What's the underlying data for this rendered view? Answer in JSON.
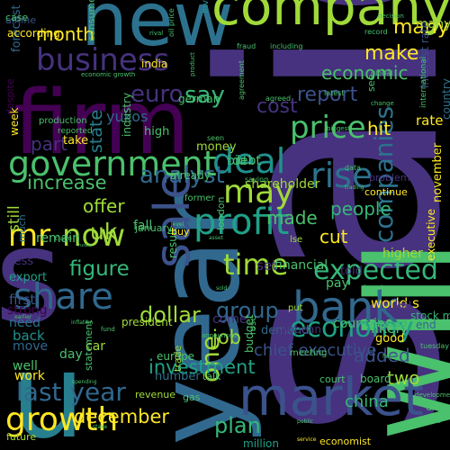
{
  "background": "#000000",
  "palette": [
    "#440154",
    "#46327e",
    "#365c8d",
    "#277f8e",
    "#1fa187",
    "#4ac16d",
    "#a0da39",
    "#fde725"
  ],
  "words": [
    {
      "text": "said",
      "weight": 1.0,
      "color": "#46327e"
    },
    {
      "text": "will",
      "weight": 0.62,
      "color": "#4ac16d"
    },
    {
      "text": "s",
      "weight": 0.6,
      "color": "#46327e"
    },
    {
      "text": "year",
      "weight": 0.55,
      "color": "#31688e"
    },
    {
      "text": "firm",
      "weight": 0.5,
      "color": "#440154"
    },
    {
      "text": "new",
      "weight": 0.4,
      "color": "#2c728e"
    },
    {
      "text": "u",
      "weight": 0.4,
      "color": "#277f8e"
    },
    {
      "text": "company",
      "weight": 0.32,
      "color": "#a0da39"
    },
    {
      "text": "market",
      "weight": 0.26,
      "color": "#3b528b"
    },
    {
      "text": "sale",
      "weight": 0.26,
      "color": "#3b528b"
    },
    {
      "text": "bank",
      "weight": 0.24,
      "color": "#31688e"
    },
    {
      "text": "growth",
      "weight": 0.22,
      "color": "#fde725"
    },
    {
      "text": "government",
      "weight": 0.22,
      "color": "#4ac16d"
    },
    {
      "text": "profit",
      "weight": 0.2,
      "color": "#1fa187"
    },
    {
      "text": "deal",
      "weight": 0.18,
      "color": "#21918c"
    },
    {
      "text": "share",
      "weight": 0.18,
      "color": "#31688e"
    },
    {
      "text": "rise",
      "weight": 0.17,
      "color": "#2c728e"
    },
    {
      "text": "may",
      "weight": 0.17,
      "color": "#a0da39"
    },
    {
      "text": "business",
      "weight": 0.15,
      "color": "#46327e"
    },
    {
      "text": "price",
      "weight": 0.15,
      "color": "#4ac16d"
    },
    {
      "text": "mr",
      "weight": 0.15,
      "color": "#fde725"
    },
    {
      "text": "now",
      "weight": 0.15,
      "color": "#a0da39"
    },
    {
      "text": "time",
      "weight": 0.13,
      "color": "#a0da39"
    },
    {
      "text": "economy",
      "weight": 0.13,
      "color": "#1fa187"
    },
    {
      "text": "expected",
      "weight": 0.13,
      "color": "#35b779"
    },
    {
      "text": "last year",
      "weight": 0.12,
      "color": "#31688e"
    },
    {
      "text": "one",
      "weight": 0.13,
      "color": "#a0da39"
    },
    {
      "text": "companies",
      "weight": 0.12,
      "color": "#2c728e"
    },
    {
      "text": "euro",
      "weight": 0.11,
      "color": "#46327e"
    },
    {
      "text": "say",
      "weight": 0.11,
      "color": "#35b779"
    },
    {
      "text": "analyst",
      "weight": 0.11,
      "color": "#31688e"
    },
    {
      "text": "uk",
      "weight": 0.11,
      "color": "#a0da39"
    },
    {
      "text": "cost",
      "weight": 0.1,
      "color": "#46327e"
    },
    {
      "text": "report",
      "weight": 0.1,
      "color": "#3b528b"
    },
    {
      "text": "many",
      "weight": 0.1,
      "color": "#fde725"
    },
    {
      "text": "make",
      "weight": 0.1,
      "color": "#fde725"
    },
    {
      "text": "group",
      "weight": 0.1,
      "color": "#31688e"
    },
    {
      "text": "plan",
      "weight": 0.1,
      "color": "#35b779"
    },
    {
      "text": "dollar",
      "weight": 0.1,
      "color": "#a0da39"
    },
    {
      "text": "figure",
      "weight": 0.1,
      "color": "#35b779"
    },
    {
      "text": "increase",
      "weight": 0.09,
      "color": "#4ac16d"
    },
    {
      "text": "december",
      "weight": 0.09,
      "color": "#fde725"
    },
    {
      "text": "investment",
      "weight": 0.09,
      "color": "#1fa187"
    },
    {
      "text": "job",
      "weight": 0.09,
      "color": "#a0da39"
    },
    {
      "text": "economic",
      "weight": 0.08,
      "color": "#4ac16d"
    },
    {
      "text": "month",
      "weight": 0.08,
      "color": "#fde725"
    },
    {
      "text": "state",
      "weight": 0.08,
      "color": "#277f8e"
    },
    {
      "text": "part",
      "weight": 0.08,
      "color": "#46327e"
    },
    {
      "text": "people",
      "weight": 0.08,
      "color": "#35b779"
    },
    {
      "text": "offer",
      "weight": 0.08,
      "color": "#a0da39"
    },
    {
      "text": "hit",
      "weight": 0.08,
      "color": "#fde725"
    },
    {
      "text": "two",
      "weight": 0.08,
      "color": "#a0da39"
    },
    {
      "text": "added",
      "weight": 0.08,
      "color": "#3b528b"
    },
    {
      "text": "made",
      "weight": 0.08,
      "color": "#4ac16d"
    },
    {
      "text": "cut",
      "weight": 0.08,
      "color": "#fde725"
    },
    {
      "text": "china",
      "weight": 0.07,
      "color": "#35b779"
    },
    {
      "text": "still",
      "weight": 0.07,
      "color": "#a0da39"
    },
    {
      "text": "yukos",
      "weight": 0.07,
      "color": "#31688e"
    },
    {
      "text": "chief executive",
      "weight": 0.06,
      "color": "#3b528b"
    },
    {
      "text": "likely",
      "weight": 0.06,
      "color": "#4ac16d"
    },
    {
      "text": "world s",
      "weight": 0.05,
      "color": "#fde725"
    },
    {
      "text": "rate",
      "weight": 0.05,
      "color": "#fde725"
    },
    {
      "text": "oil",
      "weight": 0.05,
      "color": "#46327e"
    },
    {
      "text": "many",
      "weight": 0.05,
      "color": "#a0da39"
    },
    {
      "text": "forecast",
      "weight": 0.04,
      "color": "#31688e"
    },
    {
      "text": "set",
      "weight": 0.05,
      "color": "#46327e"
    },
    {
      "text": "financial",
      "weight": 0.05,
      "color": "#4ac16d"
    },
    {
      "text": "higher",
      "weight": 0.05,
      "color": "#a0da39"
    },
    {
      "text": "pay",
      "weight": 0.05,
      "color": "#4ac16d"
    },
    {
      "text": "shareholder",
      "weight": 0.05,
      "color": "#a0da39"
    },
    {
      "text": "bid",
      "weight": 0.05,
      "color": "#35b779"
    },
    {
      "text": "debt",
      "weight": 0.05,
      "color": "#4ac16d"
    },
    {
      "text": "first",
      "weight": 0.05,
      "color": "#3b528b"
    },
    {
      "text": "back",
      "weight": 0.05,
      "color": "#21918c"
    },
    {
      "text": "move",
      "weight": 0.05,
      "color": "#31688e"
    },
    {
      "text": "need",
      "weight": 0.05,
      "color": "#2c728e"
    },
    {
      "text": "strong",
      "weight": 0.05,
      "color": "#440154"
    },
    {
      "text": "export",
      "weight": 0.05,
      "color": "#1fa187"
    },
    {
      "text": "less",
      "weight": 0.05,
      "color": "#46327e"
    },
    {
      "text": "remain",
      "weight": 0.05,
      "color": "#4ac16d"
    },
    {
      "text": "much",
      "weight": 0.05,
      "color": "#2c728e"
    },
    {
      "text": "fall",
      "weight": 0.05,
      "color": "#4ac16d"
    },
    {
      "text": "come",
      "weight": 0.05,
      "color": "#46327e"
    },
    {
      "text": "money",
      "weight": 0.05,
      "color": "#a0da39"
    },
    {
      "text": "well",
      "weight": 0.05,
      "color": "#4ac16d"
    },
    {
      "text": "work",
      "weight": 0.05,
      "color": "#fde725"
    },
    {
      "text": "car",
      "weight": 0.05,
      "color": "#a0da39"
    },
    {
      "text": "day",
      "weight": 0.05,
      "color": "#4ac16d"
    },
    {
      "text": "countries",
      "weight": 0.05,
      "color": "#4ac16d"
    },
    {
      "text": "high",
      "weight": 0.05,
      "color": "#4ac16d"
    },
    {
      "text": "take",
      "weight": 0.05,
      "color": "#fde725"
    },
    {
      "text": "demand",
      "weight": 0.05,
      "color": "#31688e"
    },
    {
      "text": "number",
      "weight": 0.04,
      "color": "#2c728e"
    },
    {
      "text": "future",
      "weight": 0.04,
      "color": "#a0da39"
    },
    {
      "text": "revenue",
      "weight": 0.04,
      "color": "#a0da39"
    },
    {
      "text": "economist",
      "weight": 0.04,
      "color": "#fde725"
    },
    {
      "text": "million",
      "weight": 0.04,
      "color": "#1fa187"
    },
    {
      "text": "london",
      "weight": 0.04,
      "color": "#4ac16d"
    },
    {
      "text": "good",
      "weight": 0.04,
      "color": "#fde725"
    },
    {
      "text": "continue",
      "weight": 0.04,
      "color": "#fde725"
    },
    {
      "text": "problem",
      "weight": 0.04,
      "color": "#46327e"
    },
    {
      "text": "told",
      "weight": 0.04,
      "color": "#46327e"
    },
    {
      "text": "based",
      "weight": 0.04,
      "color": "#35b779"
    },
    {
      "text": "end",
      "weight": 0.04,
      "color": "#31688e"
    },
    {
      "text": "stock market",
      "weight": 0.04,
      "color": "#35b779"
    },
    {
      "text": "president",
      "weight": 0.03,
      "color": "#a0da39"
    },
    {
      "text": "january",
      "weight": 0.04,
      "color": "#4ac16d"
    },
    {
      "text": "india",
      "weight": 0.04,
      "color": "#fde725"
    },
    {
      "text": "according",
      "weight": 0.04,
      "color": "#fde725"
    },
    {
      "text": "airline",
      "weight": 0.04,
      "color": "#3b528b"
    },
    {
      "text": "case",
      "weight": 0.04,
      "color": "#4ac16d"
    },
    {
      "text": "despite",
      "weight": 0.04,
      "color": "#440154"
    },
    {
      "text": "week",
      "weight": 0.04,
      "color": "#fde725"
    },
    {
      "text": "europe",
      "weight": 0.04,
      "color": "#4ac16d"
    },
    {
      "text": "european",
      "weight": 0.04,
      "color": "#46327e"
    },
    {
      "text": "country",
      "weight": 0.04,
      "color": "#2c728e"
    },
    {
      "text": "interest rate",
      "weight": 0.04,
      "color": "#3b528b"
    },
    {
      "text": "november",
      "weight": 0.04,
      "color": "#fde725"
    },
    {
      "text": "executive",
      "weight": 0.04,
      "color": "#fde725"
    },
    {
      "text": "investor",
      "weight": 0.04,
      "color": "#21918c"
    },
    {
      "text": "result",
      "weight": 0.04,
      "color": "#4ac16d"
    },
    {
      "text": "buy",
      "weight": 0.03,
      "color": "#fde725"
    },
    {
      "text": "consumer",
      "weight": 0.03,
      "color": "#4ac16d"
    },
    {
      "text": "production",
      "weight": 0.03,
      "color": "#4ac16d"
    },
    {
      "text": "reported",
      "weight": 0.03,
      "color": "#4ac16d"
    },
    {
      "text": "industry",
      "weight": 0.03,
      "color": "#4ac16d"
    },
    {
      "text": "statement",
      "weight": 0.03,
      "color": "#4ac16d"
    },
    {
      "text": "trade",
      "weight": 0.03,
      "color": "#a0da39"
    },
    {
      "text": "rose",
      "weight": 0.03,
      "color": "#4ac16d"
    },
    {
      "text": "german",
      "weight": 0.03,
      "color": "#4ac16d"
    },
    {
      "text": "court",
      "weight": 0.03,
      "color": "#4ac16d"
    },
    {
      "text": "already",
      "weight": 0.03,
      "color": "#4ac16d"
    },
    {
      "text": "meeting",
      "weight": 0.03,
      "color": "#4ac16d"
    },
    {
      "text": "budget",
      "weight": 0.03,
      "color": "#4ac16d"
    },
    {
      "text": "former",
      "weight": 0.03,
      "color": "#4ac16d"
    },
    {
      "text": "lse",
      "weight": 0.03,
      "color": "#a0da39"
    },
    {
      "text": "put",
      "weight": 0.03,
      "color": "#a0da39"
    },
    {
      "text": "fell",
      "weight": 0.03,
      "color": "#4ac16d"
    },
    {
      "text": "gas",
      "weight": 0.03,
      "color": "#4ac16d"
    },
    {
      "text": "see",
      "weight": 0.03,
      "color": "#4ac16d"
    },
    {
      "text": "talk",
      "weight": 0.03,
      "color": "#4ac16d"
    },
    {
      "text": "international",
      "weight": 0.03,
      "color": "#4ac16d"
    },
    {
      "text": "director",
      "weight": 0.03,
      "color": "#4ac16d"
    },
    {
      "text": "board",
      "weight": 0.02,
      "color": "#4ac16d"
    },
    {
      "text": "oil price",
      "weight": 0.02,
      "color": "#4ac16d"
    },
    {
      "text": "record",
      "weight": 0.02,
      "color": "#4ac16d"
    },
    {
      "text": "decision",
      "weight": 0.02,
      "color": "#4ac16d"
    },
    {
      "text": "fraud",
      "weight": 0.02,
      "color": "#4ac16d"
    },
    {
      "text": "including",
      "weight": 0.02,
      "color": "#4ac16d"
    },
    {
      "text": "global",
      "weight": 0.02,
      "color": "#4ac16d"
    },
    {
      "text": "latest",
      "weight": 0.02,
      "color": "#4ac16d"
    },
    {
      "text": "tuesday",
      "weight": 0.02,
      "color": "#4ac16d"
    },
    {
      "text": "agreed",
      "weight": 0.02,
      "color": "#4ac16d"
    },
    {
      "text": "economic growth",
      "weight": 0.02,
      "color": "#4ac16d"
    },
    {
      "text": "agreement",
      "weight": 0.02,
      "color": "#4ac16d"
    },
    {
      "text": "service",
      "weight": 0.02,
      "color": "#fde725"
    },
    {
      "text": "help",
      "weight": 0.02,
      "color": "#4ac16d"
    },
    {
      "text": "data",
      "weight": 0.02,
      "color": "#4ac16d"
    },
    {
      "text": "saying",
      "weight": 0.02,
      "color": "#4ac16d"
    },
    {
      "text": "change",
      "weight": 0.02,
      "color": "#4ac16d"
    },
    {
      "text": "boost",
      "weight": 0.02,
      "color": "#4ac16d"
    },
    {
      "text": "development",
      "weight": 0.02,
      "color": "#4ac16d"
    },
    {
      "text": "claim",
      "weight": 0.02,
      "color": "#4ac16d"
    },
    {
      "text": "russia",
      "weight": 0.02,
      "color": "#4ac16d"
    },
    {
      "text": "level",
      "weight": 0.02,
      "color": "#4ac16d"
    },
    {
      "text": "asset",
      "weight": 0.02,
      "color": "#4ac16d"
    },
    {
      "text": "trading",
      "weight": 0.02,
      "color": "#4ac16d"
    },
    {
      "text": "sold",
      "weight": 0.02,
      "color": "#4ac16d"
    },
    {
      "text": "public",
      "weight": 0.02,
      "color": "#4ac16d"
    },
    {
      "text": "face",
      "weight": 0.02,
      "color": "#4ac16d"
    },
    {
      "text": "earlier",
      "weight": 0.02,
      "color": "#4ac16d"
    },
    {
      "text": "inflation",
      "weight": 0.02,
      "color": "#4ac16d"
    },
    {
      "text": "stake",
      "weight": 0.02,
      "color": "#4ac16d"
    },
    {
      "text": "fund",
      "weight": 0.02,
      "color": "#4ac16d"
    },
    {
      "text": "spending",
      "weight": 0.02,
      "color": "#4ac16d"
    },
    {
      "text": "announced",
      "weight": 0.02,
      "color": "#4ac16d"
    },
    {
      "text": "product",
      "weight": 0.02,
      "color": "#4ac16d"
    },
    {
      "text": "rival",
      "weight": 0.02,
      "color": "#4ac16d"
    },
    {
      "text": "firm s",
      "weight": 0.02,
      "color": "#4ac16d"
    },
    {
      "text": "biggest",
      "weight": 0.02,
      "color": "#4ac16d"
    },
    {
      "text": "seen",
      "weight": 0.02,
      "color": "#4ac16d"
    }
  ]
}
